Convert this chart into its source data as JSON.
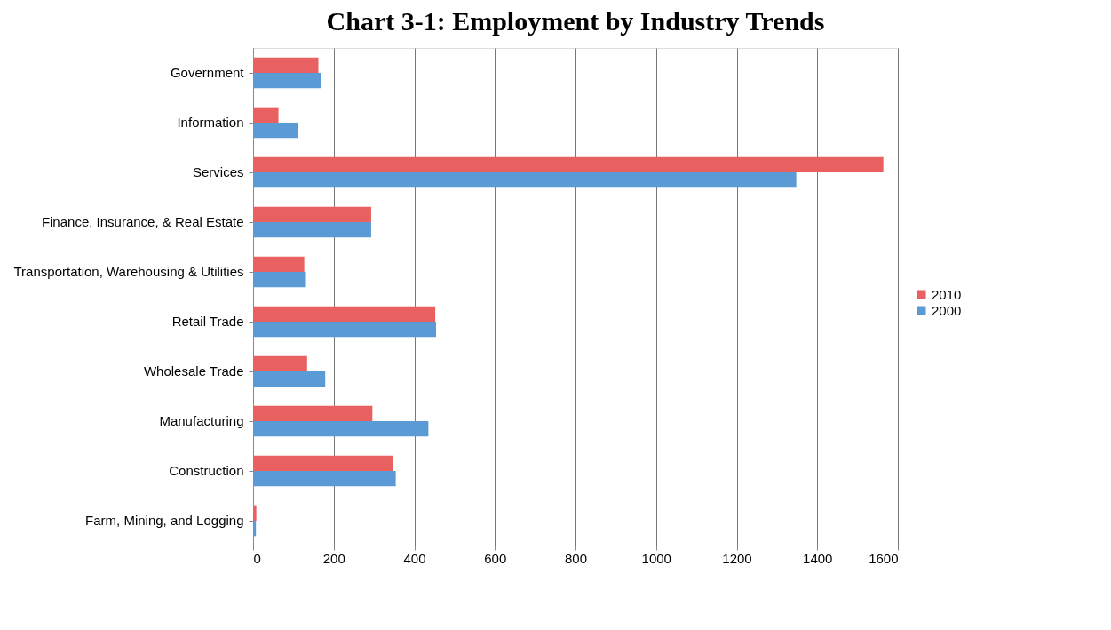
{
  "chart_data": {
    "type": "bar",
    "orientation": "horizontal",
    "title": "Chart 3-1: Employment by Industry Trends",
    "categories": [
      "Government",
      "Information",
      "Services",
      "Finance, Insurance, & Real Estate",
      "Transportation, Warehousing & Utilities",
      "Retail Trade",
      "Wholesale Trade",
      "Manufacturing",
      "Construction",
      "Farm, Mining, and Logging"
    ],
    "series": [
      {
        "name": "2010",
        "color": "#e8605f",
        "values": [
          162,
          63,
          1564,
          293,
          127,
          452,
          134,
          296,
          347,
          8
        ]
      },
      {
        "name": "2000",
        "color": "#5b9bd5",
        "values": [
          168,
          112,
          1348,
          293,
          129,
          454,
          179,
          435,
          354,
          7
        ]
      }
    ],
    "xlim": [
      0,
      1600
    ],
    "xticks": [
      0,
      200,
      400,
      600,
      800,
      1000,
      1200,
      1400,
      1600
    ],
    "grid": "x",
    "legend": "right"
  }
}
